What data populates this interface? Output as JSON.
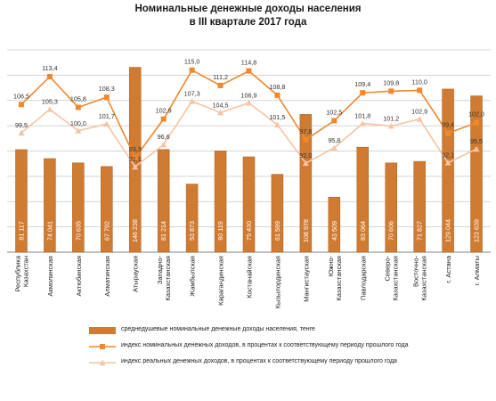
{
  "title": {
    "line1": "Номинальные  денежные доходы населения",
    "line2": "в III квартале 2017 года"
  },
  "colors": {
    "bar": "#d07b32",
    "bar_edge": "#a85e1e",
    "nominal_line": "#f0882c",
    "real_line": "#f6c4a2",
    "grid": "#c8c8c8",
    "axis": "#808080"
  },
  "chart_data": {
    "type": "bar",
    "title": "Номинальные  денежные доходы населения в III квартале 2017 года",
    "categories": [
      "Республика Казахстан",
      "Акмолинская",
      "Актюбинская",
      "Алматинская",
      "Атырауская",
      "Западно-Казахстанская",
      "Жамбылская",
      "Карагандинская",
      "Костанайская",
      "Кызылординская",
      "Мангистауская",
      "Южно-Казахстанская",
      "Павлодарская",
      "Северо-Казахстанская",
      "Восточно-Казахстанская",
      "г. Астана",
      "г. Алматы"
    ],
    "category_labels": [
      [
        "Республика",
        "Казахстан"
      ],
      [
        "Акмолинская"
      ],
      [
        "Актюбинская"
      ],
      [
        "Алматинская"
      ],
      [
        "Атырауская"
      ],
      [
        "Западно-",
        "Казахстанская"
      ],
      [
        "Жамбылская"
      ],
      [
        "Карагандинская"
      ],
      [
        "Костанайская"
      ],
      [
        "Кызылординская"
      ],
      [
        "Мангистауская"
      ],
      [
        "Южно-",
        "Казахстанская"
      ],
      [
        "Павлодарская"
      ],
      [
        "Северо-",
        "Казахстанская"
      ],
      [
        "Восточно-",
        "Казахстанская"
      ],
      [
        "г. Астана"
      ],
      [
        "г. Алматы"
      ]
    ],
    "series": [
      {
        "name": "среднедушевые номинальные денежные доходы населения, тенге",
        "type": "bar",
        "axis": "left",
        "values": [
          81117,
          74041,
          70635,
          67792,
          146238,
          81214,
          53873,
          80119,
          75430,
          61599,
          108978,
          43509,
          83064,
          70606,
          71827,
          129044,
          123639
        ],
        "labels": [
          "81 117",
          "74 041",
          "70 635",
          "67 792",
          "146 238",
          "81 214",
          "53 873",
          "80 119",
          "75 430",
          "61 599",
          "108 978",
          "43 509",
          "83 064",
          "70 606",
          "71 827",
          "129 044",
          "123 639"
        ]
      },
      {
        "name": "индекс номинальных денежных доходов, в процентах к соответствующему периоду прошлого года",
        "type": "line",
        "axis": "right",
        "values": [
          106.5,
          113.4,
          105.8,
          108.3,
          93.3,
          102.9,
          115.0,
          111.2,
          114.8,
          108.8,
          97.8,
          102.5,
          109.4,
          109.8,
          110.0,
          99.4,
          102.0
        ],
        "labels": [
          "106,5",
          "113,4",
          "105,8",
          "108,3",
          "93,3",
          "102,9",
          "115,0",
          "111,2",
          "114,8",
          "108,8",
          "97,8",
          "102,5",
          "109,4",
          "109,8",
          "110,0",
          "99,4",
          "102,0"
        ]
      },
      {
        "name": "индекс реальных денежных доходов, в процентах к соответствующему периоду прошлого года",
        "type": "line",
        "axis": "right",
        "values": [
          99.5,
          105.3,
          100.0,
          101.7,
          91.1,
          96.6,
          107.3,
          104.5,
          106.9,
          101.5,
          92.0,
          95.8,
          101.8,
          101.2,
          102.9,
          92.1,
          95.5
        ],
        "labels": [
          "99,5",
          "105,3",
          "100,0",
          "101,7",
          "91,1",
          "96,6",
          "107,3",
          "104,5",
          "106,9",
          "101,5",
          "92,0",
          "95,8",
          "101,8",
          "101,2",
          "102,9",
          "92,1",
          "95,5"
        ]
      }
    ],
    "ylim_left": [
      0,
      160000
    ],
    "ylim_right": [
      70,
      120
    ],
    "grid": true,
    "legend_position": "bottom"
  }
}
